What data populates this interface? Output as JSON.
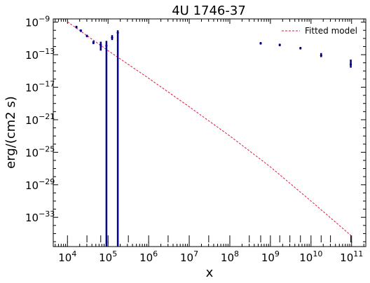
{
  "chart_data": {
    "type": "scatter",
    "title": "4U 1746-37",
    "xlabel": "x",
    "ylabel": "erg/(cm2 s)",
    "x_scale": "log",
    "y_scale": "log",
    "xlim_exp": [
      3.65,
      11.35
    ],
    "ylim_exp": [
      -36.6,
      -8.6
    ],
    "x_tick_labels": [
      {
        "exp": 4,
        "label": "10",
        "sup": "4"
      },
      {
        "exp": 5,
        "label": "10",
        "sup": "5"
      },
      {
        "exp": 6,
        "label": "10",
        "sup": "6"
      },
      {
        "exp": 7,
        "label": "10",
        "sup": "7"
      },
      {
        "exp": 8,
        "label": "10",
        "sup": "8"
      },
      {
        "exp": 9,
        "label": "10",
        "sup": "9"
      },
      {
        "exp": 10,
        "label": "10",
        "sup": "10"
      },
      {
        "exp": 11,
        "label": "10",
        "sup": "11"
      }
    ],
    "y_tick_labels": [
      {
        "exp": -9,
        "label": "10",
        "sup": "−9"
      },
      {
        "exp": -13,
        "label": "10",
        "sup": "−13"
      },
      {
        "exp": -17,
        "label": "10",
        "sup": "−17"
      },
      {
        "exp": -21,
        "label": "10",
        "sup": "−21"
      },
      {
        "exp": -25,
        "label": "10",
        "sup": "−25"
      },
      {
        "exp": -29,
        "label": "10",
        "sup": "−29"
      },
      {
        "exp": -33,
        "label": "10",
        "sup": "−33"
      }
    ],
    "colors": {
      "data": "#00008b",
      "model": "#e8173a"
    },
    "series": [
      {
        "name": "",
        "kind": "data-with-errorbars",
        "points": [
          {
            "x_exp": 4.22,
            "y_exp": -9.6,
            "y_lo_exp": -9.75,
            "y_hi_exp": -9.45
          },
          {
            "x_exp": 4.33,
            "y_exp": -10.05,
            "y_lo_exp": -10.2,
            "y_hi_exp": -9.9
          },
          {
            "x_exp": 4.48,
            "y_exp": -10.7,
            "y_lo_exp": -10.85,
            "y_hi_exp": -10.55
          },
          {
            "x_exp": 4.64,
            "y_exp": -11.5,
            "y_lo_exp": -11.7,
            "y_hi_exp": -11.3
          },
          {
            "x_exp": 4.82,
            "y_exp": -11.8,
            "y_lo_exp": -12.5,
            "y_hi_exp": -11.4
          },
          {
            "x_exp": 4.96,
            "y_exp": -11.9,
            "y_lo_exp": -38.0,
            "y_hi_exp": -11.3
          },
          {
            "x_exp": 5.1,
            "y_exp": -10.9,
            "y_lo_exp": -11.2,
            "y_hi_exp": -10.6
          },
          {
            "x_exp": 5.24,
            "y_exp": -10.3,
            "y_lo_exp": -38.0,
            "y_hi_exp": -10.0
          },
          {
            "x_exp": 8.76,
            "y_exp": -11.6,
            "y_lo_exp": -11.75,
            "y_hi_exp": -11.45
          },
          {
            "x_exp": 9.23,
            "y_exp": -11.8,
            "y_lo_exp": -11.95,
            "y_hi_exp": -11.65
          },
          {
            "x_exp": 9.74,
            "y_exp": -12.2,
            "y_lo_exp": -12.35,
            "y_hi_exp": -12.05
          },
          {
            "x_exp": 10.25,
            "y_exp": -13.1,
            "y_lo_exp": -13.3,
            "y_hi_exp": -12.8
          },
          {
            "x_exp": 10.98,
            "y_exp": -14.2,
            "y_lo_exp": -14.6,
            "y_hi_exp": -13.6
          }
        ]
      },
      {
        "name": "Fitted model",
        "kind": "line",
        "points": [
          {
            "x_exp": 4.0,
            "y_exp": -8.95
          },
          {
            "x_exp": 5.0,
            "y_exp": -12.5
          },
          {
            "x_exp": 6.0,
            "y_exp": -15.9
          },
          {
            "x_exp": 7.0,
            "y_exp": -19.4
          },
          {
            "x_exp": 8.0,
            "y_exp": -23.0
          },
          {
            "x_exp": 9.0,
            "y_exp": -26.8
          },
          {
            "x_exp": 10.0,
            "y_exp": -31.0
          },
          {
            "x_exp": 11.0,
            "y_exp": -35.3
          }
        ]
      }
    ],
    "legend": {
      "position": "top-right",
      "entries": [
        "Fitted model"
      ]
    },
    "rug": {
      "x_exp": [
        4.0,
        4.48,
        4.82,
        5.0,
        5.24,
        5.5,
        6.0,
        6.48,
        7.0,
        7.48,
        8.0,
        8.48,
        8.76,
        9.0,
        9.23,
        9.48,
        9.74,
        10.0,
        10.25,
        10.48,
        10.98,
        11.0
      ]
    }
  }
}
